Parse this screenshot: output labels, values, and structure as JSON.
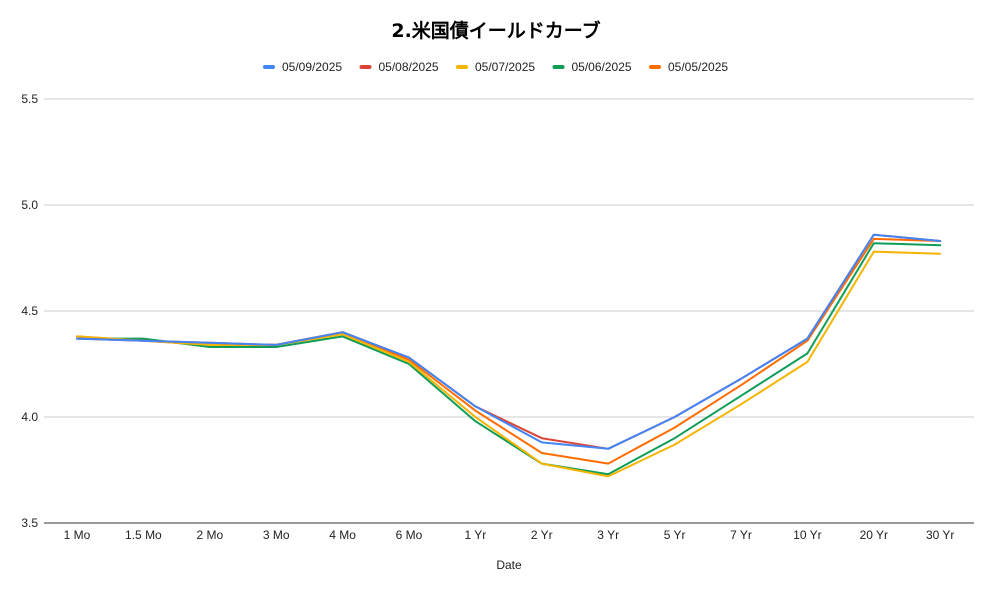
{
  "chart_data": {
    "type": "line",
    "title": "2.米国債イールドカーブ",
    "xlabel": "Date",
    "ylabel": "",
    "ylim": [
      3.5,
      5.5
    ],
    "yticks": [
      "3.5",
      "4.0",
      "4.5",
      "5.0",
      "5.5"
    ],
    "grid": true,
    "legend_position": "top",
    "categories": [
      "1 Mo",
      "1.5 Mo",
      "2 Mo",
      "3 Mo",
      "4 Mo",
      "6 Mo",
      "1 Yr",
      "2 Yr",
      "3 Yr",
      "5 Yr",
      "7 Yr",
      "10 Yr",
      "20 Yr",
      "30 Yr"
    ],
    "series": [
      {
        "name": "05/09/2025",
        "color": "#4285f4",
        "values": [
          4.37,
          4.36,
          4.35,
          4.34,
          4.4,
          4.28,
          4.05,
          3.88,
          3.85,
          4.0,
          4.18,
          4.37,
          4.86,
          4.83
        ]
      },
      {
        "name": "05/08/2025",
        "color": "#db4437",
        "values": [
          4.37,
          4.36,
          4.35,
          4.34,
          4.4,
          4.28,
          4.05,
          3.9,
          3.85,
          4.0,
          4.18,
          4.37,
          4.86,
          4.83
        ]
      },
      {
        "name": "05/07/2025",
        "color": "#f4b400",
        "values": [
          4.38,
          4.36,
          4.34,
          4.34,
          4.39,
          4.26,
          4.0,
          3.78,
          3.72,
          3.87,
          4.06,
          4.26,
          4.78,
          4.77
        ]
      },
      {
        "name": "05/06/2025",
        "color": "#0f9d58",
        "values": [
          4.37,
          4.37,
          4.33,
          4.33,
          4.38,
          4.25,
          3.98,
          3.78,
          3.73,
          3.9,
          4.1,
          4.3,
          4.82,
          4.81
        ]
      },
      {
        "name": "05/05/2025",
        "color": "#ff6d01",
        "values": [
          4.38,
          4.36,
          4.34,
          4.34,
          4.4,
          4.27,
          4.03,
          3.83,
          3.78,
          3.95,
          4.15,
          4.36,
          4.84,
          4.83
        ]
      }
    ]
  }
}
